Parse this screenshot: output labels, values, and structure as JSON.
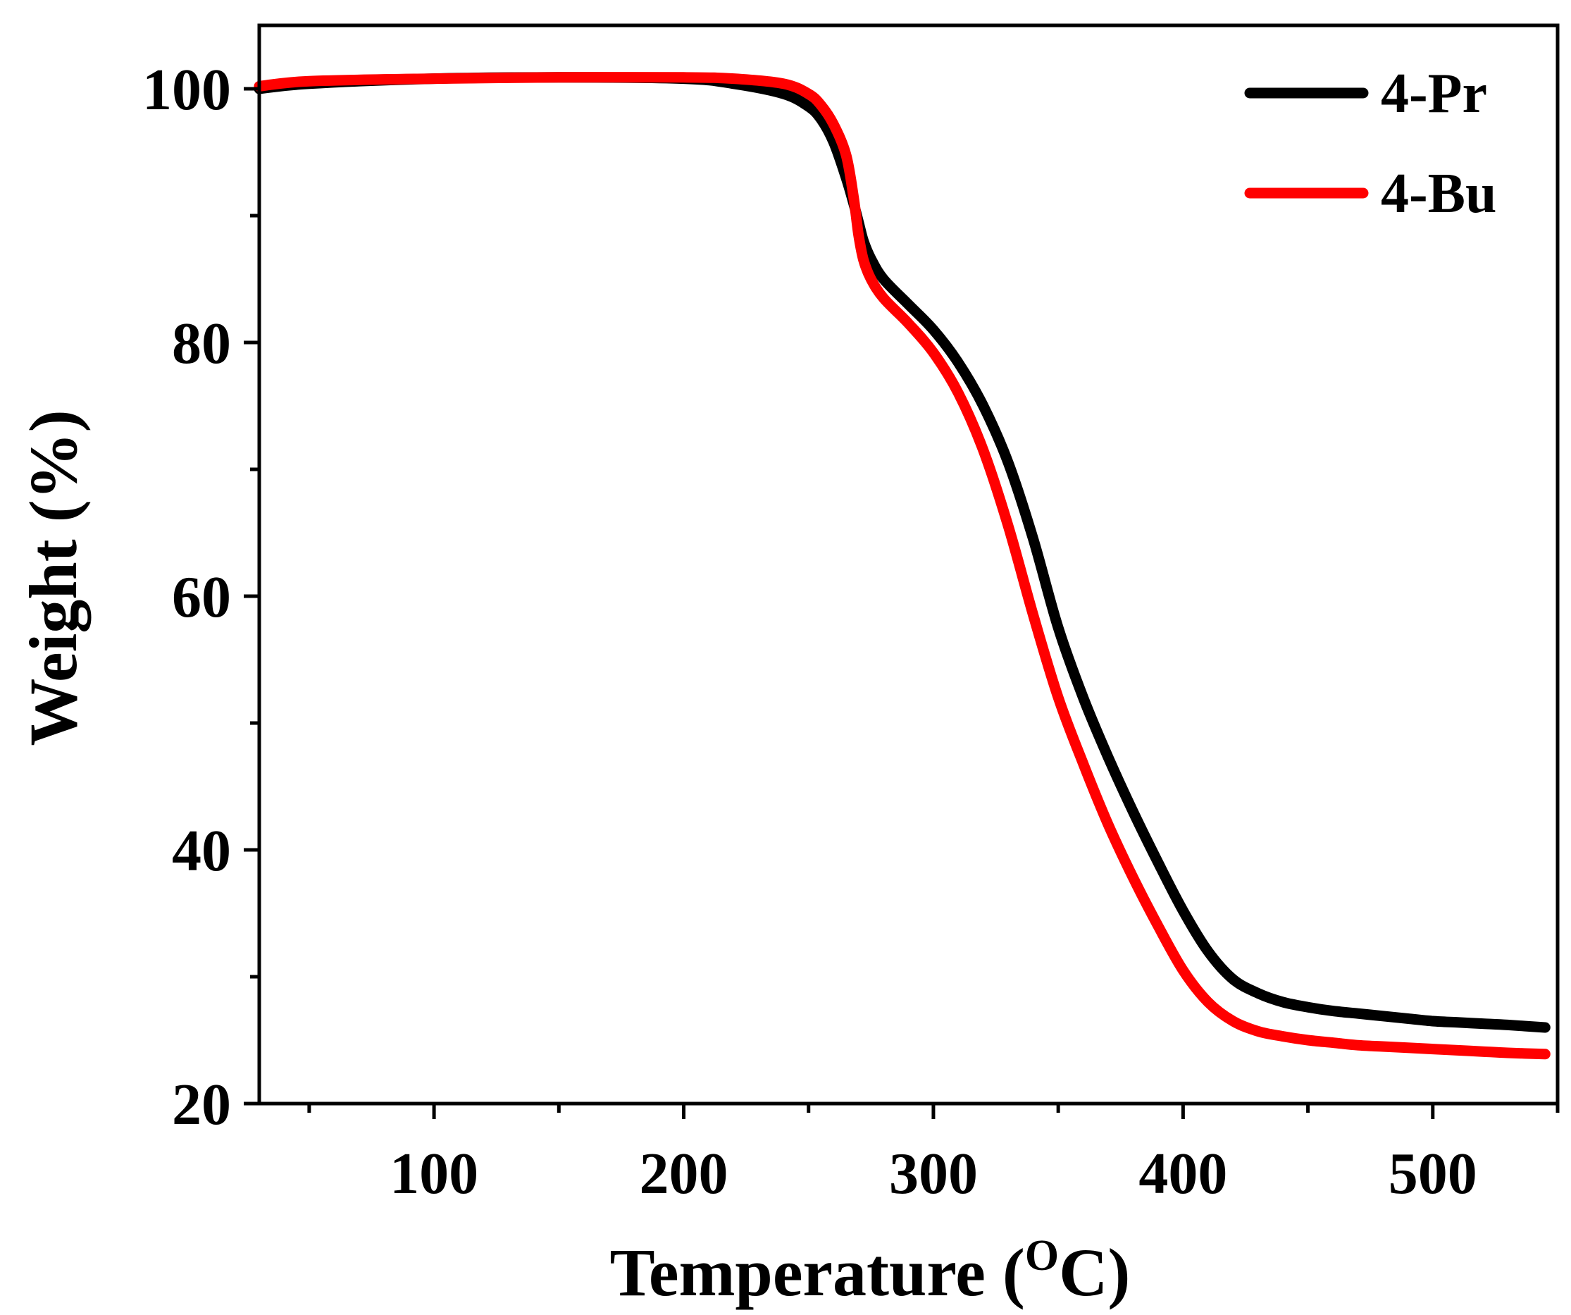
{
  "chart_data": {
    "type": "line",
    "title": "",
    "xlabel_main": "Temperature (",
    "xlabel_sup": "O",
    "xlabel_tail": "C)",
    "ylabel": "Weight (%)",
    "xlim": [
      30,
      550
    ],
    "ylim": [
      20,
      105
    ],
    "x_ticks": [
      100,
      200,
      300,
      400,
      500
    ],
    "x_tick_labels": [
      "100",
      "200",
      "300",
      "400",
      "500"
    ],
    "x_minor_ticks": [
      50,
      150,
      250,
      350,
      450,
      550
    ],
    "y_ticks": [
      20,
      40,
      60,
      80,
      100
    ],
    "y_tick_labels": [
      "20",
      "40",
      "60",
      "80",
      "100"
    ],
    "y_minor_ticks": [
      30,
      50,
      70,
      90
    ],
    "grid": false,
    "legend_position": "top-right",
    "series": [
      {
        "name": "4-Pr",
        "color": "#000000",
        "x": [
          30,
          50,
          100,
          150,
          200,
          220,
          240,
          250,
          255,
          260,
          265,
          268,
          270,
          272,
          275,
          280,
          290,
          300,
          310,
          320,
          330,
          340,
          350,
          360,
          370,
          380,
          390,
          400,
          410,
          420,
          430,
          440,
          450,
          460,
          470,
          480,
          490,
          500,
          510,
          520,
          530,
          545
        ],
        "y": [
          100.0,
          100.4,
          100.8,
          100.9,
          100.8,
          100.4,
          99.6,
          98.6,
          97.6,
          95.8,
          93.0,
          91.0,
          89.5,
          88.0,
          86.6,
          85.0,
          83.0,
          81.0,
          78.4,
          75.0,
          70.5,
          64.5,
          57.5,
          52.0,
          47.3,
          43.0,
          39.0,
          35.2,
          32.0,
          29.8,
          28.7,
          28.0,
          27.6,
          27.3,
          27.1,
          26.9,
          26.7,
          26.5,
          26.4,
          26.3,
          26.2,
          26.0
        ]
      },
      {
        "name": "4-Bu",
        "color": "#ff0000",
        "x": [
          30,
          50,
          100,
          150,
          200,
          220,
          240,
          250,
          255,
          260,
          265,
          268,
          270,
          272,
          275,
          280,
          290,
          300,
          310,
          320,
          330,
          340,
          350,
          360,
          370,
          380,
          390,
          400,
          410,
          420,
          430,
          440,
          450,
          460,
          470,
          480,
          490,
          500,
          510,
          520,
          530,
          545
        ],
        "y": [
          100.2,
          100.6,
          100.8,
          100.9,
          100.9,
          100.8,
          100.4,
          99.6,
          98.7,
          97.2,
          94.8,
          91.5,
          88.5,
          86.5,
          85.0,
          83.5,
          81.5,
          79.2,
          76.0,
          71.5,
          65.5,
          58.5,
          52.0,
          46.8,
          42.0,
          37.8,
          34.0,
          30.5,
          28.0,
          26.5,
          25.7,
          25.3,
          25.0,
          24.8,
          24.6,
          24.5,
          24.4,
          24.3,
          24.2,
          24.1,
          24.0,
          23.9
        ]
      }
    ]
  }
}
